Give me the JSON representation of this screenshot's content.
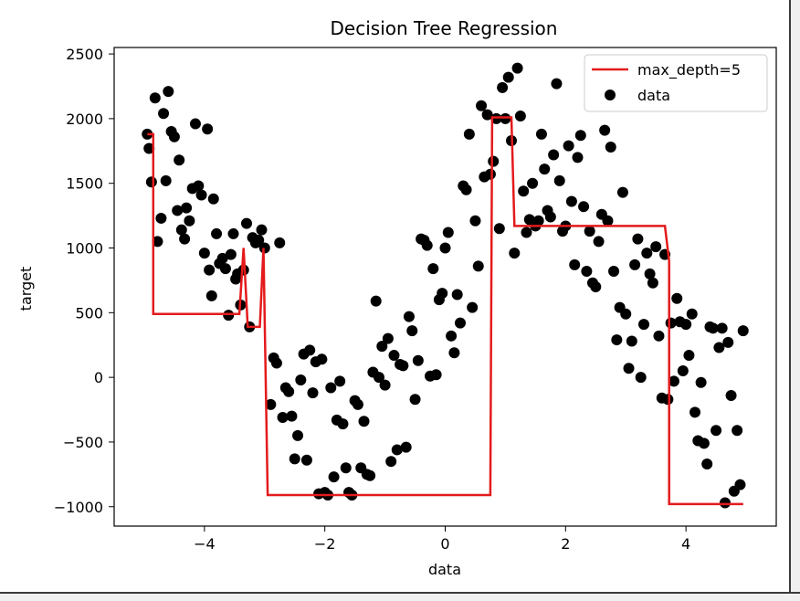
{
  "chart_data": {
    "type": "scatter",
    "title": "Decision Tree Regression",
    "xlabel": "data",
    "ylabel": "target",
    "xlim": [
      -5.5,
      5.5
    ],
    "ylim": [
      -1150,
      2550
    ],
    "xticks": [
      -4,
      -2,
      0,
      2,
      4
    ],
    "yticks": [
      -1000,
      -500,
      0,
      500,
      1000,
      1500,
      2000,
      2500
    ],
    "xtick_labels": [
      "−4",
      "−2",
      "0",
      "2",
      "4"
    ],
    "ytick_labels": [
      "−1000",
      "−500",
      "0",
      "500",
      "1000",
      "1500",
      "2000",
      "2500"
    ],
    "legend_position": "top-right",
    "series": [
      {
        "name": "max_depth=5",
        "kind": "line",
        "color": "#e41a1c",
        "points": [
          [
            -4.95,
            1880
          ],
          [
            -4.85,
            1880
          ],
          [
            -4.85,
            490
          ],
          [
            -3.42,
            490
          ],
          [
            -3.35,
            1000
          ],
          [
            -3.28,
            390
          ],
          [
            -3.08,
            390
          ],
          [
            -3.02,
            1000
          ],
          [
            -2.95,
            -910
          ],
          [
            0.75,
            -910
          ],
          [
            0.78,
            2010
          ],
          [
            1.1,
            2010
          ],
          [
            1.15,
            1170
          ],
          [
            3.65,
            1170
          ],
          [
            3.72,
            900
          ],
          [
            3.72,
            -980
          ],
          [
            4.95,
            -980
          ]
        ]
      },
      {
        "name": "data",
        "kind": "scatter",
        "color": "#000000",
        "points": [
          [
            -4.95,
            1880
          ],
          [
            -4.92,
            1770
          ],
          [
            -4.88,
            1510
          ],
          [
            -4.82,
            2160
          ],
          [
            -4.78,
            1050
          ],
          [
            -4.72,
            1230
          ],
          [
            -4.68,
            2040
          ],
          [
            -4.64,
            1520
          ],
          [
            -4.6,
            2210
          ],
          [
            -4.55,
            1900
          ],
          [
            -4.5,
            1860
          ],
          [
            -4.45,
            1290
          ],
          [
            -4.42,
            1680
          ],
          [
            -4.38,
            1140
          ],
          [
            -4.33,
            1070
          ],
          [
            -4.3,
            1310
          ],
          [
            -4.25,
            1210
          ],
          [
            -4.2,
            1460
          ],
          [
            -4.15,
            1960
          ],
          [
            -4.1,
            1480
          ],
          [
            -4.05,
            1410
          ],
          [
            -4.0,
            960
          ],
          [
            -3.95,
            1920
          ],
          [
            -3.92,
            830
          ],
          [
            -3.88,
            630
          ],
          [
            -3.85,
            1380
          ],
          [
            -3.8,
            1110
          ],
          [
            -3.75,
            880
          ],
          [
            -3.7,
            920
          ],
          [
            -3.65,
            840
          ],
          [
            -3.6,
            480
          ],
          [
            -3.56,
            950
          ],
          [
            -3.52,
            1110
          ],
          [
            -3.48,
            760
          ],
          [
            -3.45,
            800
          ],
          [
            -3.4,
            560
          ],
          [
            -3.35,
            830
          ],
          [
            -3.3,
            1190
          ],
          [
            -3.25,
            390
          ],
          [
            -3.2,
            1080
          ],
          [
            -3.15,
            1040
          ],
          [
            -3.1,
            1060
          ],
          [
            -3.05,
            1140
          ],
          [
            -3.0,
            1000
          ],
          [
            -2.9,
            -210
          ],
          [
            -2.85,
            150
          ],
          [
            -2.8,
            110
          ],
          [
            -2.75,
            1040
          ],
          [
            -2.7,
            -310
          ],
          [
            -2.65,
            -80
          ],
          [
            -2.6,
            -110
          ],
          [
            -2.55,
            -300
          ],
          [
            -2.5,
            -630
          ],
          [
            -2.45,
            -450
          ],
          [
            -2.4,
            -20
          ],
          [
            -2.35,
            180
          ],
          [
            -2.3,
            -640
          ],
          [
            -2.25,
            210
          ],
          [
            -2.2,
            -120
          ],
          [
            -2.15,
            120
          ],
          [
            -2.1,
            -900
          ],
          [
            -2.05,
            140
          ],
          [
            -2.0,
            -890
          ],
          [
            -1.95,
            -910
          ],
          [
            -1.9,
            -80
          ],
          [
            -1.85,
            -770
          ],
          [
            -1.8,
            -330
          ],
          [
            -1.75,
            -30
          ],
          [
            -1.7,
            -360
          ],
          [
            -1.65,
            -700
          ],
          [
            -1.6,
            -890
          ],
          [
            -1.55,
            -910
          ],
          [
            -1.5,
            -180
          ],
          [
            -1.45,
            -210
          ],
          [
            -1.4,
            -700
          ],
          [
            -1.35,
            -340
          ],
          [
            -1.3,
            -750
          ],
          [
            -1.25,
            -760
          ],
          [
            -1.2,
            40
          ],
          [
            -1.15,
            590
          ],
          [
            -1.1,
            0
          ],
          [
            -1.05,
            240
          ],
          [
            -1.0,
            -60
          ],
          [
            -0.95,
            300
          ],
          [
            -0.9,
            -650
          ],
          [
            -0.85,
            170
          ],
          [
            -0.8,
            -560
          ],
          [
            -0.75,
            100
          ],
          [
            -0.7,
            90
          ],
          [
            -0.65,
            -540
          ],
          [
            -0.6,
            470
          ],
          [
            -0.55,
            360
          ],
          [
            -0.5,
            -170
          ],
          [
            -0.45,
            130
          ],
          [
            -0.4,
            1070
          ],
          [
            -0.35,
            1060
          ],
          [
            -0.3,
            1020
          ],
          [
            -0.25,
            10
          ],
          [
            -0.2,
            840
          ],
          [
            -0.15,
            20
          ],
          [
            -0.1,
            600
          ],
          [
            -0.05,
            650
          ],
          [
            0.0,
            1000
          ],
          [
            0.05,
            1120
          ],
          [
            0.1,
            320
          ],
          [
            0.15,
            190
          ],
          [
            0.2,
            640
          ],
          [
            0.25,
            420
          ],
          [
            0.3,
            1480
          ],
          [
            0.35,
            1450
          ],
          [
            0.4,
            1880
          ],
          [
            0.45,
            540
          ],
          [
            0.5,
            1210
          ],
          [
            0.55,
            860
          ],
          [
            0.6,
            2100
          ],
          [
            0.65,
            1550
          ],
          [
            0.7,
            2030
          ],
          [
            0.75,
            1570
          ],
          [
            0.8,
            1670
          ],
          [
            0.85,
            2000
          ],
          [
            0.9,
            1150
          ],
          [
            0.95,
            2240
          ],
          [
            1.0,
            2000
          ],
          [
            1.05,
            2320
          ],
          [
            1.1,
            1830
          ],
          [
            1.15,
            960
          ],
          [
            1.2,
            2390
          ],
          [
            1.25,
            2020
          ],
          [
            1.3,
            1440
          ],
          [
            1.35,
            1120
          ],
          [
            1.4,
            1220
          ],
          [
            1.45,
            1500
          ],
          [
            1.5,
            1170
          ],
          [
            1.55,
            1210
          ],
          [
            1.6,
            1880
          ],
          [
            1.65,
            1610
          ],
          [
            1.7,
            1290
          ],
          [
            1.75,
            1240
          ],
          [
            1.8,
            1720
          ],
          [
            1.85,
            2270
          ],
          [
            1.9,
            1520
          ],
          [
            1.95,
            1130
          ],
          [
            2.0,
            1170
          ],
          [
            2.05,
            1790
          ],
          [
            2.1,
            1360
          ],
          [
            2.15,
            870
          ],
          [
            2.2,
            1700
          ],
          [
            2.25,
            1870
          ],
          [
            2.3,
            1320
          ],
          [
            2.35,
            820
          ],
          [
            2.4,
            1130
          ],
          [
            2.45,
            730
          ],
          [
            2.5,
            700
          ],
          [
            2.55,
            1050
          ],
          [
            2.6,
            1260
          ],
          [
            2.65,
            1910
          ],
          [
            2.7,
            1210
          ],
          [
            2.75,
            1780
          ],
          [
            2.8,
            820
          ],
          [
            2.85,
            290
          ],
          [
            2.9,
            540
          ],
          [
            2.95,
            1430
          ],
          [
            3.0,
            490
          ],
          [
            3.05,
            70
          ],
          [
            3.1,
            280
          ],
          [
            3.15,
            870
          ],
          [
            3.2,
            1070
          ],
          [
            3.25,
            0
          ],
          [
            3.3,
            410
          ],
          [
            3.35,
            960
          ],
          [
            3.4,
            800
          ],
          [
            3.45,
            730
          ],
          [
            3.5,
            1010
          ],
          [
            3.55,
            320
          ],
          [
            3.6,
            -160
          ],
          [
            3.65,
            950
          ],
          [
            3.7,
            -170
          ],
          [
            3.75,
            420
          ],
          [
            3.8,
            -30
          ],
          [
            3.85,
            610
          ],
          [
            3.9,
            430
          ],
          [
            3.95,
            50
          ],
          [
            4.0,
            410
          ],
          [
            4.05,
            170
          ],
          [
            4.1,
            490
          ],
          [
            4.15,
            -270
          ],
          [
            4.2,
            -490
          ],
          [
            4.25,
            -40
          ],
          [
            4.3,
            -510
          ],
          [
            4.35,
            -670
          ],
          [
            4.4,
            390
          ],
          [
            4.45,
            380
          ],
          [
            4.5,
            -410
          ],
          [
            4.55,
            230
          ],
          [
            4.6,
            380
          ],
          [
            4.65,
            -970
          ],
          [
            4.7,
            270
          ],
          [
            4.75,
            -140
          ],
          [
            4.8,
            -880
          ],
          [
            4.85,
            -410
          ],
          [
            4.9,
            -830
          ],
          [
            4.95,
            360
          ]
        ]
      }
    ]
  }
}
